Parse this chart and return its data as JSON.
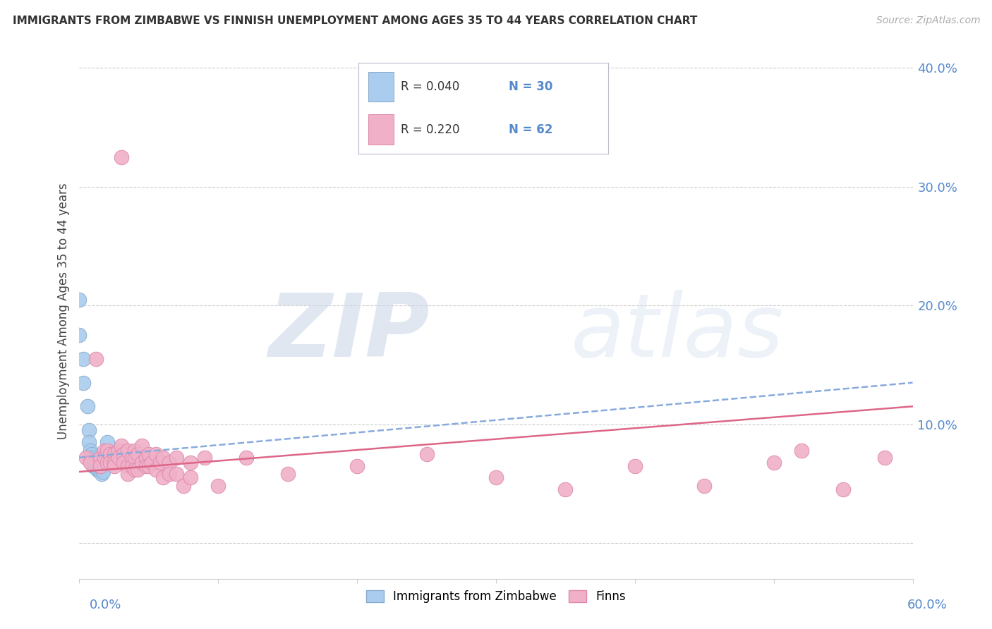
{
  "title": "IMMIGRANTS FROM ZIMBABWE VS FINNISH UNEMPLOYMENT AMONG AGES 35 TO 44 YEARS CORRELATION CHART",
  "source": "Source: ZipAtlas.com",
  "ylabel": "Unemployment Among Ages 35 to 44 years",
  "xmin": 0.0,
  "xmax": 0.6,
  "ymin": -0.03,
  "ymax": 0.42,
  "yticks": [
    0.0,
    0.1,
    0.2,
    0.3,
    0.4
  ],
  "ytick_labels": [
    "",
    "10.0%",
    "20.0%",
    "30.0%",
    "40.0%"
  ],
  "blue_color": "#aaccee",
  "pink_color": "#f0b0c8",
  "blue_edge_color": "#88aacc",
  "pink_edge_color": "#dd88aa",
  "blue_line_color": "#88aadd",
  "pink_line_color": "#dd6688",
  "tick_color": "#5588cc",
  "blue_scatter": [
    [
      0.0,
      0.205
    ],
    [
      0.0,
      0.175
    ],
    [
      0.003,
      0.155
    ],
    [
      0.003,
      0.135
    ],
    [
      0.006,
      0.115
    ],
    [
      0.007,
      0.095
    ],
    [
      0.007,
      0.085
    ],
    [
      0.008,
      0.078
    ],
    [
      0.008,
      0.072
    ],
    [
      0.009,
      0.075
    ],
    [
      0.009,
      0.068
    ],
    [
      0.01,
      0.072
    ],
    [
      0.01,
      0.068
    ],
    [
      0.01,
      0.065
    ],
    [
      0.011,
      0.07
    ],
    [
      0.011,
      0.065
    ],
    [
      0.012,
      0.068
    ],
    [
      0.012,
      0.065
    ],
    [
      0.013,
      0.065
    ],
    [
      0.013,
      0.062
    ],
    [
      0.014,
      0.065
    ],
    [
      0.014,
      0.062
    ],
    [
      0.015,
      0.068
    ],
    [
      0.015,
      0.065
    ],
    [
      0.016,
      0.062
    ],
    [
      0.016,
      0.058
    ],
    [
      0.017,
      0.065
    ],
    [
      0.017,
      0.06
    ],
    [
      0.018,
      0.068
    ],
    [
      0.02,
      0.085
    ]
  ],
  "pink_scatter": [
    [
      0.005,
      0.072
    ],
    [
      0.008,
      0.068
    ],
    [
      0.012,
      0.155
    ],
    [
      0.015,
      0.072
    ],
    [
      0.015,
      0.065
    ],
    [
      0.018,
      0.078
    ],
    [
      0.018,
      0.072
    ],
    [
      0.02,
      0.078
    ],
    [
      0.02,
      0.068
    ],
    [
      0.022,
      0.075
    ],
    [
      0.022,
      0.068
    ],
    [
      0.025,
      0.075
    ],
    [
      0.025,
      0.068
    ],
    [
      0.025,
      0.065
    ],
    [
      0.028,
      0.078
    ],
    [
      0.028,
      0.072
    ],
    [
      0.03,
      0.082
    ],
    [
      0.03,
      0.325
    ],
    [
      0.032,
      0.075
    ],
    [
      0.032,
      0.068
    ],
    [
      0.035,
      0.078
    ],
    [
      0.035,
      0.065
    ],
    [
      0.035,
      0.058
    ],
    [
      0.038,
      0.072
    ],
    [
      0.038,
      0.065
    ],
    [
      0.04,
      0.078
    ],
    [
      0.04,
      0.072
    ],
    [
      0.04,
      0.062
    ],
    [
      0.042,
      0.075
    ],
    [
      0.042,
      0.062
    ],
    [
      0.045,
      0.082
    ],
    [
      0.045,
      0.068
    ],
    [
      0.048,
      0.072
    ],
    [
      0.048,
      0.065
    ],
    [
      0.05,
      0.075
    ],
    [
      0.05,
      0.065
    ],
    [
      0.052,
      0.068
    ],
    [
      0.055,
      0.075
    ],
    [
      0.055,
      0.062
    ],
    [
      0.058,
      0.068
    ],
    [
      0.06,
      0.072
    ],
    [
      0.06,
      0.055
    ],
    [
      0.065,
      0.068
    ],
    [
      0.065,
      0.058
    ],
    [
      0.07,
      0.072
    ],
    [
      0.07,
      0.058
    ],
    [
      0.075,
      0.048
    ],
    [
      0.08,
      0.068
    ],
    [
      0.08,
      0.055
    ],
    [
      0.09,
      0.072
    ],
    [
      0.1,
      0.048
    ],
    [
      0.12,
      0.072
    ],
    [
      0.15,
      0.058
    ],
    [
      0.2,
      0.065
    ],
    [
      0.25,
      0.075
    ],
    [
      0.3,
      0.055
    ],
    [
      0.35,
      0.045
    ],
    [
      0.4,
      0.065
    ],
    [
      0.45,
      0.048
    ],
    [
      0.5,
      0.068
    ],
    [
      0.52,
      0.078
    ],
    [
      0.55,
      0.045
    ],
    [
      0.58,
      0.072
    ]
  ],
  "blue_trend_x": [
    0.0,
    0.6
  ],
  "blue_trend_y": [
    0.072,
    0.135
  ],
  "pink_trend_x": [
    0.0,
    0.6
  ],
  "pink_trend_y": [
    0.06,
    0.115
  ]
}
